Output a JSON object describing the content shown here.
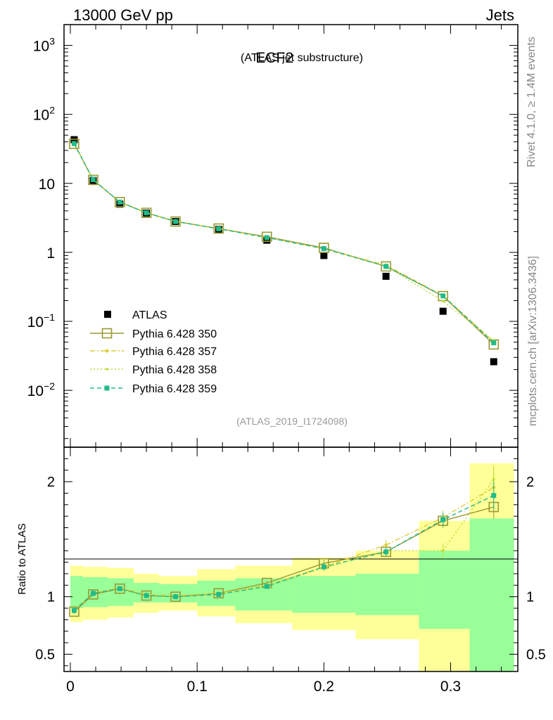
{
  "header": {
    "left": "13000 GeV pp",
    "right": "Jets"
  },
  "chart_data": {
    "type": "scatter",
    "title_main": "ECF2",
    "title_sub": "(ATLAS jet substructure)",
    "analysis_id": "(ATLAS_2019_I1724098)",
    "side_label_top": "Rivet 4.1.0, ≥ 1.4M events",
    "side_label_bottom": "mcplots.cern.ch [arXiv:1306.3436]",
    "xlim": [
      -0.005,
      0.353
    ],
    "xticks": [
      0,
      0.1,
      0.2,
      0.3
    ],
    "xtick_labels": [
      "0",
      "0.1",
      "0.2",
      "0.3"
    ],
    "main": {
      "yscale": "log",
      "ylim": [
        0.0015,
        2000
      ],
      "yticks": [
        {
          "value": 1000,
          "base": "10",
          "exp": "3"
        },
        {
          "value": 100,
          "base": "10",
          "exp": "2"
        },
        {
          "value": 10,
          "base": "10",
          "exp": ""
        },
        {
          "value": 1,
          "base": "1",
          "exp": ""
        },
        {
          "value": 0.1,
          "base": "10",
          "exp": "−1"
        },
        {
          "value": 0.01,
          "base": "10",
          "exp": "−2"
        }
      ]
    },
    "ratio": {
      "ylabel": "Ratio to ATLAS",
      "ylim": [
        0.35,
        2.3
      ],
      "yticks": [
        0.5,
        1,
        2
      ],
      "ytick_labels": [
        "0.5",
        "1",
        "2"
      ],
      "band_edges": [
        0,
        0.01,
        0.03,
        0.05,
        0.07,
        0.1,
        0.13,
        0.175,
        0.225,
        0.275,
        0.315,
        0.35
      ],
      "band_yellow": [
        [
          0.78,
          1.27
        ],
        [
          0.8,
          1.26
        ],
        [
          0.82,
          1.25
        ],
        [
          0.86,
          1.2
        ],
        [
          0.88,
          1.18
        ],
        [
          0.83,
          1.24
        ],
        [
          0.77,
          1.27
        ],
        [
          0.71,
          1.34
        ],
        [
          0.63,
          1.4
        ],
        [
          0.3,
          1.66
        ],
        [
          0.3,
          2.16
        ]
      ],
      "band_green": [
        [
          0.9,
          1.18
        ],
        [
          0.91,
          1.17
        ],
        [
          0.92,
          1.16
        ],
        [
          0.95,
          1.12
        ],
        [
          0.95,
          1.11
        ],
        [
          0.92,
          1.14
        ],
        [
          0.88,
          1.16
        ],
        [
          0.86,
          1.18
        ],
        [
          0.84,
          1.2
        ],
        [
          0.72,
          1.4
        ],
        [
          0.3,
          1.68
        ]
      ]
    },
    "x": [
      0.003,
      0.018,
      0.039,
      0.06,
      0.083,
      0.117,
      0.155,
      0.2,
      0.249,
      0.294,
      0.334
    ],
    "data_series": {
      "name": "ATLAS",
      "values": [
        43,
        11,
        5.0,
        3.7,
        2.8,
        2.15,
        1.5,
        0.9,
        0.45,
        0.14,
        0.026
      ]
    },
    "series": [
      {
        "name": "Pythia 6.428 350",
        "color": "#999933",
        "style": "solid",
        "marker": "open-square",
        "ratio": [
          0.87,
          1.02,
          1.07,
          1.01,
          1.0,
          1.03,
          1.12,
          1.29,
          1.39,
          1.66,
          1.78
        ],
        "ratio_err": [
          0.02,
          0.02,
          0.02,
          0.02,
          0.02,
          0.02,
          0.02,
          0.03,
          0.04,
          0.06,
          0.1
        ]
      },
      {
        "name": "Pythia 6.428 357",
        "color": "#ddcc33",
        "style": "dashdot",
        "marker": "small-diamond",
        "ratio": [
          0.88,
          1.03,
          1.08,
          1.02,
          1.01,
          1.03,
          1.1,
          1.26,
          1.45,
          1.69,
          1.95
        ],
        "ratio_err": [
          0.02,
          0.02,
          0.02,
          0.02,
          0.02,
          0.02,
          0.02,
          0.03,
          0.04,
          0.06,
          0.12
        ]
      },
      {
        "name": "Pythia 6.428 358",
        "color": "#bbdd33",
        "style": "dotted",
        "marker": "small-dot",
        "ratio": [
          0.88,
          1.03,
          1.07,
          1.01,
          1.0,
          1.02,
          1.09,
          1.25,
          1.4,
          1.4,
          2.02
        ],
        "ratio_err": [
          0.02,
          0.02,
          0.02,
          0.02,
          0.02,
          0.02,
          0.02,
          0.03,
          0.04,
          0.06,
          0.12
        ]
      },
      {
        "name": "Pythia 6.428 359",
        "color": "#22bb88",
        "style": "dashed",
        "marker": "filled-square",
        "ratio": [
          0.88,
          1.03,
          1.07,
          1.01,
          1.0,
          1.02,
          1.09,
          1.26,
          1.39,
          1.67,
          1.88
        ],
        "ratio_err": [
          0.02,
          0.02,
          0.02,
          0.02,
          0.02,
          0.02,
          0.02,
          0.03,
          0.04,
          0.06,
          0.12
        ]
      }
    ]
  }
}
